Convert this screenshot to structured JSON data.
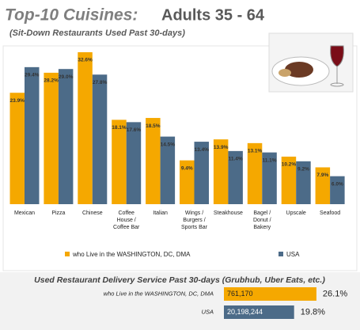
{
  "chart_data": [
    {
      "type": "bar",
      "title": "Top-10 Cuisines:",
      "subtitle": "Adults 35 - 64",
      "note": "(Sit-Down Restaurants Used Past 30-days)",
      "categories": [
        "Mexican",
        "Pizza",
        "Chinese",
        "Coffee House / Coffee Bar",
        "Italian",
        "Wings / Burgers / Sports Bar",
        "Steakhouse",
        "Bagel / Donut / Bakery",
        "Upscale",
        "Seafood"
      ],
      "series": [
        {
          "name": "who Live in the WASHINGTON, DC, DMA",
          "color": "#f5a800",
          "values": [
            23.9,
            28.2,
            32.6,
            18.1,
            18.5,
            9.4,
            13.9,
            13.1,
            10.2,
            7.9
          ],
          "value_labels": [
            "23.9%",
            "28.2%",
            "32.6%",
            "18.1%",
            "18.5%",
            "9.4%",
            "13.9%",
            "13.1%",
            "10.2%",
            "7.9%"
          ]
        },
        {
          "name": "USA",
          "color": "#4c6b88",
          "values": [
            29.4,
            29.0,
            27.8,
            17.6,
            14.5,
            13.4,
            11.4,
            11.1,
            9.2,
            6.0
          ],
          "value_labels": [
            "29.4%",
            "29.0%",
            "27.8%",
            "17.6%",
            "14.5%",
            "13.4%",
            "11.4%",
            "11.1%",
            "9.2%",
            "6.0%"
          ]
        }
      ]
    },
    {
      "type": "hbar",
      "title": "Used Restaurant Delivery Service Past 30-days (Grubhub, Uber Eats, etc.)",
      "categories": [
        "who Live in the WASHINGTON, DC, DMA",
        "USA"
      ],
      "colors": [
        "#f5a800",
        "#4c6b88"
      ],
      "count_labels": [
        "761,170",
        "20,198,244"
      ],
      "values": [
        26.1,
        19.8
      ],
      "value_labels": [
        "26.1%",
        "19.8%"
      ]
    }
  ]
}
